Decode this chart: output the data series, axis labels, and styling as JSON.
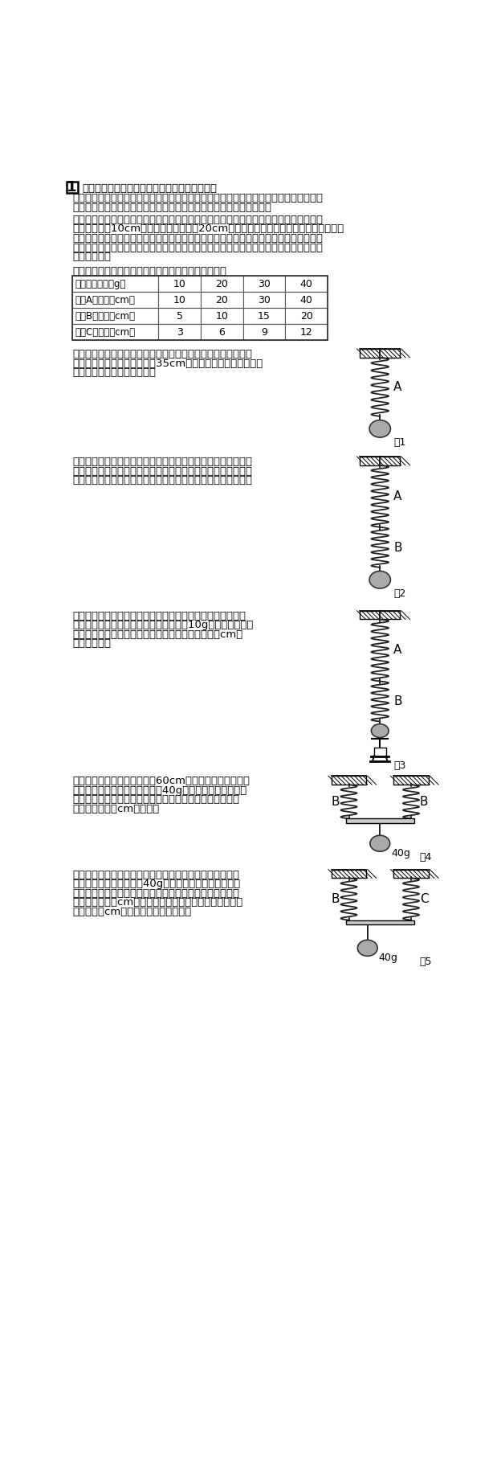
{
  "title_num": "1",
  "intro_line1": "次の文章を読んで，あとの問いに答えなさい。",
  "intro_line2": "　ただし，割り算が必要な場合は，分数ではなく小数で答えなさい。また，割り切れな",
  "intro_line3": "い場合のみ，小数第２位を四捨五入して小数第１位まで答えなさい。",
  "body_lines": [
    "　三つの異なる種類のばねを使って実験を行いました。力が加わっていないときの長さ",
    "は，ばねＡが10cm，ばねＢとばねＣは20cmです。以下の表はそれぞれのばねにおも",
    "りをつるしたときのばねの伸びを記録したものです。次の問いに答えなさい。ただし，",
    "ばねの重さと（４）以降の棒の重さ，おもりについている糸の重さは考えなくてよいも",
    "のとします。"
  ],
  "table_caption": "表　ばねにつるしたおもりの重さとばねの伸びの関係",
  "table_headers": [
    "おもりの重さ（g）",
    "10",
    "20",
    "30",
    "40"
  ],
  "table_row1": [
    "ばねAの伸び（cm）",
    "10",
    "20",
    "30",
    "40"
  ],
  "table_row2": [
    "ばねBの伸び（cm）",
    "5",
    "10",
    "15",
    "20"
  ],
  "table_row3": [
    "ばねCの伸び（cm）",
    "3",
    "6",
    "9",
    "12"
  ],
  "q1_lines": [
    "（１）　図１のように，ばねＡにある重さのおもりをつないだ",
    "　　　ところ，ばねの長さが35cmになりました。このおもり",
    "　　　の重さは何ｇですか。"
  ],
  "q2_lines": [
    "（２）　図２のように，ばねＡとＢを直列につないで，Ｂの下",
    "　　　にある重さのおもりをつないだところ，ばねＡとＢが同",
    "　　　じ長さになりました。このおもりの重さは何ｇですか。"
  ],
  "q3_lines": [
    "（３）　図３のように，（２）の状態からおもりの下に台は",
    "　　　かりをおいたところ，台はかりは10gを示しました。",
    "　　　　このとき，ばねＡとＢの長さはあわせて何cmで",
    "　　　すか。"
  ],
  "q4_lines": [
    "（４）　図４のように，長さ60cmの一様な棒の両はにば",
    "　　　ねＢをとりつけ，中央に40gのおもりをつないだと",
    "　　　ころ，棒は水平になりました。このとき，ばねＢの",
    "　　　長さは何cmですか。"
  ],
  "q5_lines": [
    "（５）　図５のように，ばねＢとばねＣを（４）と同じ棒",
    "　　　の両はにつなぎ，40gのおもりの位置をかえたと",
    "　　　ころ，棒は水平になりました。このとき，ばねＢの",
    "　　　長さは何cmですか。また，おもりは棒の左はしか",
    "　　　ら何cmのところにありますか。"
  ],
  "fig_labels": [
    "図1",
    "図2",
    "図3",
    "図4",
    "図5"
  ],
  "bg_color": "#ffffff"
}
